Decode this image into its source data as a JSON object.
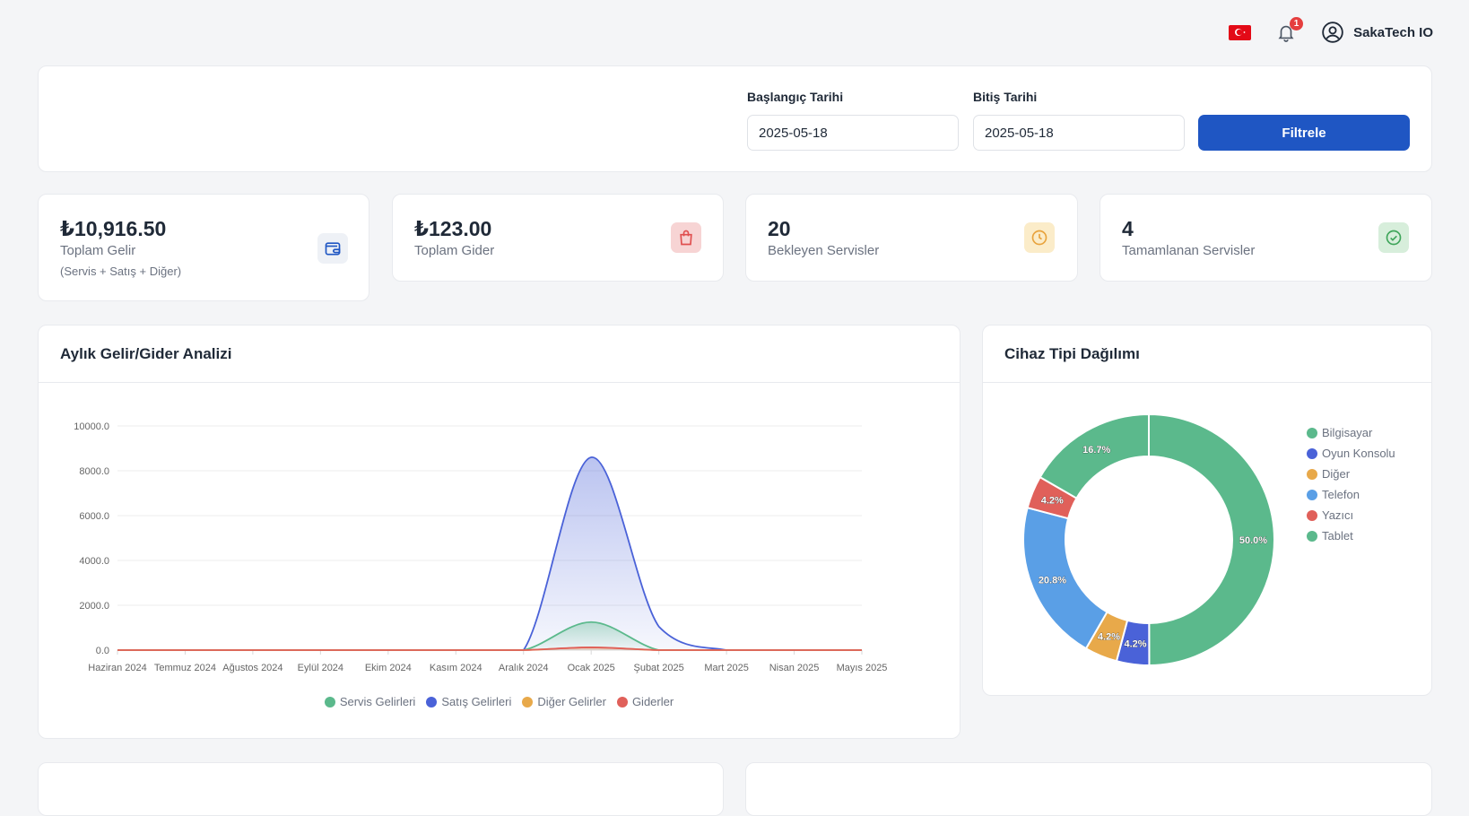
{
  "header": {
    "notification_count": "1",
    "user_name": "SakaTech IO"
  },
  "filter": {
    "start_label": "Başlangıç Tarihi",
    "start_value": "2025-05-18",
    "end_label": "Bitiş Tarihi",
    "end_value": "2025-05-18",
    "button_label": "Filtrele"
  },
  "stats": [
    {
      "value": "₺10,916.50",
      "label": "Toplam Gelir",
      "sub": "(Servis + Satış + Diğer)",
      "icon": "wallet-icon",
      "color": "#1f56c3",
      "bg": "#eef1f6"
    },
    {
      "value": "₺123.00",
      "label": "Toplam Gider",
      "sub": "",
      "icon": "shopping-bag-icon",
      "color": "#e04f4f",
      "bg": "#f7d4d4"
    },
    {
      "value": "20",
      "label": "Bekleyen Servisler",
      "sub": "",
      "icon": "clock-icon",
      "color": "#e8a33d",
      "bg": "#fbecc9"
    },
    {
      "value": "4",
      "label": "Tamamlanan Servisler",
      "sub": "",
      "icon": "check-circle-icon",
      "color": "#3fa55a",
      "bg": "#d7eedb"
    }
  ],
  "line_panel": {
    "title": "Aylık Gelir/Gider Analizi"
  },
  "pie_panel": {
    "title": "Cihaz Tipi Dağılımı"
  },
  "chart_data": [
    {
      "type": "area",
      "title": "Aylık Gelir/Gider Analizi",
      "categories": [
        "Haziran 2024",
        "Temmuz 2024",
        "Ağustos 2024",
        "Eylül 2024",
        "Ekim 2024",
        "Kasım 2024",
        "Aralık 2024",
        "Ocak 2025",
        "Şubat 2025",
        "Mart 2025",
        "Nisan 2025",
        "Mayıs 2025"
      ],
      "ylim": [
        0,
        10000
      ],
      "yticks": [
        "0.0",
        "2000.0",
        "4000.0",
        "6000.0",
        "8000.0",
        "10000.0"
      ],
      "grid": true,
      "legend_position": "bottom",
      "series": [
        {
          "name": "Servis Gelirleri",
          "color": "#5bb98c",
          "values": [
            0,
            0,
            0,
            0,
            0,
            0,
            0,
            1250,
            0,
            0,
            0,
            0
          ]
        },
        {
          "name": "Satış Gelirleri",
          "color": "#4a62d8",
          "values": [
            0,
            0,
            0,
            0,
            0,
            0,
            0,
            8600,
            1050,
            0,
            0,
            0
          ]
        },
        {
          "name": "Diğer Gelirler",
          "color": "#e8a94a",
          "values": [
            0,
            0,
            0,
            0,
            0,
            0,
            0,
            120,
            0,
            0,
            0,
            0
          ]
        },
        {
          "name": "Giderler",
          "color": "#e0605a",
          "values": [
            0,
            0,
            0,
            0,
            0,
            0,
            0,
            123,
            0,
            0,
            0,
            0
          ]
        }
      ]
    },
    {
      "type": "pie",
      "title": "Cihaz Tipi Dağılımı",
      "legend_position": "right",
      "slices": [
        {
          "label": "Bilgisayar",
          "value": 50.0,
          "text": "50.0%",
          "color": "#5bb98c"
        },
        {
          "label": "Oyun Konsolu",
          "value": 4.2,
          "text": "4.2%",
          "color": "#4a62d8"
        },
        {
          "label": "Diğer",
          "value": 4.2,
          "text": "4.2%",
          "color": "#e8a94a"
        },
        {
          "label": "Telefon",
          "value": 20.8,
          "text": "20.8%",
          "color": "#5a9fe6"
        },
        {
          "label": "Yazıcı",
          "value": 4.2,
          "text": "4.2%",
          "color": "#e0605a"
        },
        {
          "label": "Tablet",
          "value": 16.7,
          "text": "16.7%",
          "color": "#5bb98c"
        }
      ]
    }
  ]
}
